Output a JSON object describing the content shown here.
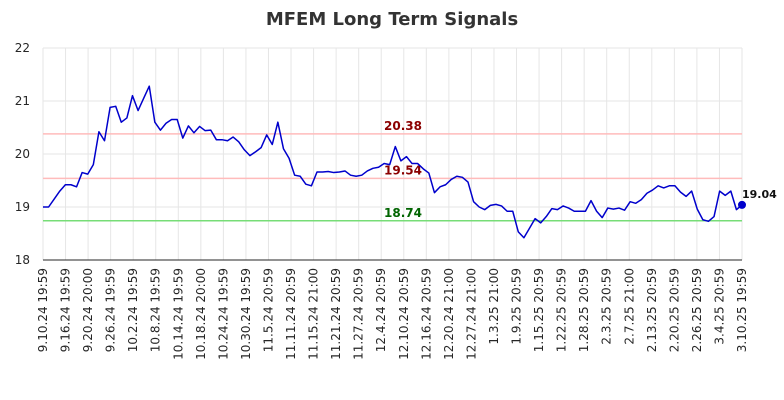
{
  "chart_data": {
    "type": "line",
    "title": "MFEM Long Term Signals",
    "ylim": [
      18,
      22
    ],
    "yticks": [
      18,
      19,
      20,
      21,
      22
    ],
    "grid": true,
    "x_tick_labels": [
      "9.10.24 19:59",
      "9.16.24 19:59",
      "9.20.24 20:00",
      "9.26.24 19:59",
      "10.2.24 19:59",
      "10.8.24 19:59",
      "10.14.24 19:59",
      "10.18.24 20:00",
      "10.24.24 19:59",
      "10.30.24 19:59",
      "11.5.24 20:59",
      "11.11.24 20:59",
      "11.15.24 21:00",
      "11.21.24 20:59",
      "11.27.24 20:59",
      "12.4.24 20:59",
      "12.10.24 20:59",
      "12.16.24 20:59",
      "12.20.24 21:00",
      "12.27.24 21:00",
      "1.3.25 21:00",
      "1.9.25 20:59",
      "1.15.25 20:59",
      "1.22.25 20:59",
      "1.28.25 20:59",
      "2.3.25 20:59",
      "2.7.25 21:00",
      "2.13.25 20:59",
      "2.20.25 20:59",
      "2.26.25 20:59",
      "3.4.25 20:59",
      "3.10.25 19:59"
    ],
    "series": [
      {
        "color": "#0000cc",
        "values": [
          19.0,
          19.0,
          19.15,
          19.3,
          19.42,
          19.42,
          19.38,
          19.65,
          19.62,
          19.8,
          20.42,
          20.25,
          20.88,
          20.9,
          20.6,
          20.68,
          21.1,
          20.82,
          21.05,
          21.28,
          20.6,
          20.45,
          20.58,
          20.65,
          20.65,
          20.3,
          20.53,
          20.4,
          20.52,
          20.44,
          20.45,
          20.27,
          20.27,
          20.25,
          20.32,
          20.23,
          20.08,
          19.97,
          20.04,
          20.12,
          20.36,
          20.18,
          20.6,
          20.1,
          19.92,
          19.6,
          19.58,
          19.43,
          19.4,
          19.66,
          19.66,
          19.67,
          19.65,
          19.66,
          19.68,
          19.6,
          19.58,
          19.6,
          19.68,
          19.73,
          19.75,
          19.82,
          19.8,
          20.14,
          19.87,
          19.95,
          19.82,
          19.82,
          19.72,
          19.64,
          19.27,
          19.38,
          19.42,
          19.52,
          19.58,
          19.56,
          19.47,
          19.1,
          19.0,
          18.95,
          19.03,
          19.05,
          19.02,
          18.92,
          18.92,
          18.53,
          18.42,
          18.6,
          18.78,
          18.7,
          18.82,
          18.97,
          18.95,
          19.02,
          18.98,
          18.92,
          18.92,
          18.92,
          19.12,
          18.92,
          18.8,
          18.98,
          18.96,
          18.98,
          18.94,
          19.1,
          19.07,
          19.14,
          19.26,
          19.32,
          19.4,
          19.36,
          19.4,
          19.4,
          19.28,
          19.2,
          19.3,
          18.96,
          18.76,
          18.73,
          18.82,
          19.3,
          19.22,
          19.3,
          18.95,
          19.04
        ]
      }
    ],
    "reference_lines": [
      {
        "value": 20.38,
        "label": "20.38",
        "line_color": "#ffbbbb",
        "label_color": "#8b0000"
      },
      {
        "value": 19.54,
        "label": "19.54",
        "line_color": "#ffbbbb",
        "label_color": "#8b0000"
      },
      {
        "value": 18.74,
        "label": "18.74",
        "line_color": "#77dd77",
        "label_color": "#006400"
      }
    ],
    "last_point": {
      "value": 19.04,
      "label": "19.04",
      "color": "#0000cc"
    }
  }
}
